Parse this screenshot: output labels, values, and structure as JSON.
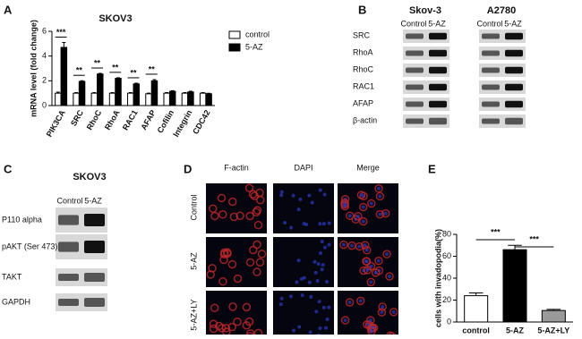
{
  "panel_labels": [
    "A",
    "B",
    "C",
    "D",
    "E"
  ],
  "chart_data": [
    {
      "type": "bar",
      "title": "SKOV3",
      "y_label": "mRNA level (fold change)",
      "categories": [
        "PIK3CA",
        "SRC",
        "RhoC",
        "RhoA",
        "RAC1",
        "AFAP",
        "Cofilin",
        "Integrin",
        "CDC42"
      ],
      "series": [
        {
          "name": "control",
          "color": "#ffffff",
          "values": [
            1.0,
            1.0,
            1.0,
            1.0,
            1.0,
            0.95,
            1.0,
            1.0,
            1.0
          ],
          "errors": [
            0.08,
            0.05,
            0.05,
            0.05,
            0.05,
            0.05,
            0.05,
            0.05,
            0.05
          ]
        },
        {
          "name": "5-AZ",
          "color": "#000000",
          "values": [
            4.7,
            1.95,
            2.55,
            2.2,
            1.75,
            2.0,
            1.15,
            1.1,
            0.95
          ],
          "errors": [
            0.4,
            0.06,
            0.05,
            0.05,
            0.06,
            0.1,
            0.05,
            0.06,
            0.04
          ]
        }
      ],
      "annotations": [
        "***",
        "**",
        "**",
        "**",
        "**",
        "**"
      ],
      "ylim": [
        0,
        6
      ],
      "yticks": [
        0,
        2,
        4,
        6
      ]
    },
    {
      "type": "bar",
      "y_label": "cells with invadopodia(%)",
      "categories": [
        "control",
        "5-AZ",
        "5-AZ+LY"
      ],
      "values": [
        24,
        66,
        10.5
      ],
      "errors": [
        2.5,
        4,
        1
      ],
      "colors": [
        "#ffffff",
        "#000000",
        "#9a9a9a"
      ],
      "annotations": [
        "***",
        "***"
      ],
      "ylim": [
        0,
        80
      ],
      "yticks": [
        0,
        20,
        40,
        60,
        80
      ]
    }
  ],
  "blot_b": {
    "groups": [
      {
        "title": "Skov-3",
        "lanes": [
          "Control",
          "5-AZ"
        ]
      },
      {
        "title": "A2780",
        "lanes": [
          "Control",
          "5-AZ"
        ]
      }
    ],
    "rows": [
      "SRC",
      "RhoA",
      "RhoC",
      "RAC1",
      "AFAP",
      "β-actin"
    ]
  },
  "blot_c": {
    "title": "SKOV3",
    "lanes": [
      "Control",
      "5-AZ"
    ],
    "rows": [
      "P110 alpha",
      "pAKT (Ser 473)",
      "TAKT",
      "GAPDH"
    ]
  },
  "microscopy_d": {
    "columns": [
      "F-actin",
      "DAPI",
      "Merge"
    ],
    "rows": [
      "Control",
      "5-AZ",
      "5-AZ+LY"
    ]
  }
}
